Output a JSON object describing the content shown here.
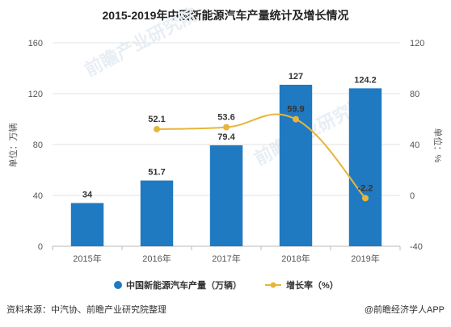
{
  "chart_data": {
    "type": "bar",
    "title": "2015-2019年中国新能源汽车产量统计及增长情况",
    "categories": [
      "2015年",
      "2016年",
      "2017年",
      "2018年",
      "2019年"
    ],
    "series": [
      {
        "name": "中国新能源汽车产量（万辆）",
        "type": "bar",
        "axis": "left",
        "values": [
          34,
          51.7,
          79.4,
          127,
          124.2
        ],
        "labels": [
          "34",
          "51.7",
          "79.4",
          "127",
          "124.2"
        ],
        "color": "#1f7ac2"
      },
      {
        "name": "增长率（%）",
        "type": "line",
        "axis": "right",
        "values": [
          null,
          52.1,
          53.6,
          59.9,
          -2.2
        ],
        "labels": [
          "",
          "52.1",
          "53.6",
          "59.9",
          "-2.2"
        ],
        "color": "#e8b53a"
      }
    ],
    "ylabel": "单位：万辆",
    "ylabel_right": "单位：%",
    "ylim": [
      0,
      160
    ],
    "yticks": [
      0,
      40,
      80,
      120,
      160
    ],
    "ylim_right": [
      -40,
      120
    ],
    "yticks_right": [
      -40,
      0,
      40,
      80,
      120
    ],
    "grid": true,
    "legend_position": "bottom"
  },
  "footer": {
    "source": "资料来源：中汽协、前瞻产业研究院整理",
    "brand": "@前瞻经济学人APP"
  },
  "watermark": {
    "text": "前瞻产业研究院"
  }
}
